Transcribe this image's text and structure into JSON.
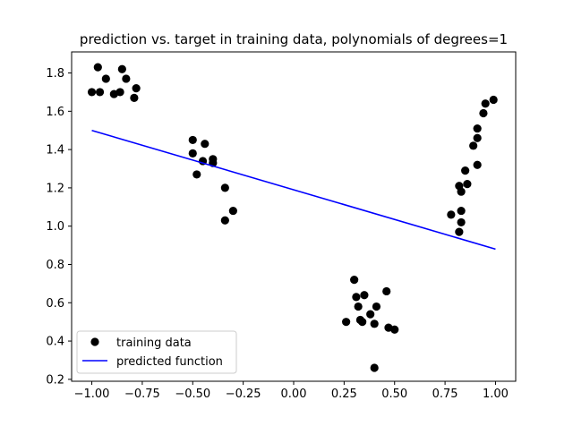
{
  "chart_data": {
    "type": "scatter",
    "title": "prediction vs. target in training data,  polynomials of degrees=1",
    "xlabel": "",
    "ylabel": "",
    "xlim": [
      -1.1,
      1.1
    ],
    "ylim": [
      0.19,
      1.91
    ],
    "xticks": [
      -1.0,
      -0.75,
      -0.5,
      -0.25,
      0.0,
      0.25,
      0.5,
      0.75,
      1.0
    ],
    "xtick_labels": [
      "−1.00",
      "−0.75",
      "−0.50",
      "−0.25",
      "0.00",
      "0.25",
      "0.50",
      "0.75",
      "1.00"
    ],
    "yticks": [
      0.2,
      0.4,
      0.6,
      0.8,
      1.0,
      1.2,
      1.4,
      1.6,
      1.8
    ],
    "ytick_labels": [
      "0.2",
      "0.4",
      "0.6",
      "0.8",
      "1.0",
      "1.2",
      "1.4",
      "1.6",
      "1.8"
    ],
    "grid": false,
    "legend": "lower-left",
    "series": [
      {
        "name": "training data",
        "kind": "scatter",
        "color": "#000000",
        "points": [
          [
            -0.97,
            1.83
          ],
          [
            -0.85,
            1.82
          ],
          [
            -0.93,
            1.77
          ],
          [
            -0.83,
            1.77
          ],
          [
            -1.0,
            1.7
          ],
          [
            -0.96,
            1.7
          ],
          [
            -0.86,
            1.7
          ],
          [
            -0.89,
            1.69
          ],
          [
            -0.78,
            1.72
          ],
          [
            -0.79,
            1.67
          ],
          [
            -0.5,
            1.45
          ],
          [
            -0.44,
            1.43
          ],
          [
            -0.5,
            1.38
          ],
          [
            -0.45,
            1.34
          ],
          [
            -0.4,
            1.35
          ],
          [
            -0.4,
            1.33
          ],
          [
            -0.48,
            1.27
          ],
          [
            -0.34,
            1.2
          ],
          [
            -0.3,
            1.08
          ],
          [
            -0.34,
            1.03
          ],
          [
            0.3,
            0.72
          ],
          [
            0.46,
            0.66
          ],
          [
            0.35,
            0.64
          ],
          [
            0.31,
            0.63
          ],
          [
            0.32,
            0.58
          ],
          [
            0.41,
            0.58
          ],
          [
            0.38,
            0.54
          ],
          [
            0.33,
            0.51
          ],
          [
            0.26,
            0.5
          ],
          [
            0.34,
            0.5
          ],
          [
            0.4,
            0.49
          ],
          [
            0.47,
            0.47
          ],
          [
            0.5,
            0.46
          ],
          [
            0.4,
            0.26
          ],
          [
            0.99,
            1.66
          ],
          [
            0.95,
            1.64
          ],
          [
            0.94,
            1.59
          ],
          [
            0.91,
            1.51
          ],
          [
            0.91,
            1.46
          ],
          [
            0.89,
            1.42
          ],
          [
            0.91,
            1.32
          ],
          [
            0.85,
            1.29
          ],
          [
            0.86,
            1.22
          ],
          [
            0.82,
            1.21
          ],
          [
            0.83,
            1.18
          ],
          [
            0.83,
            1.08
          ],
          [
            0.78,
            1.06
          ],
          [
            0.83,
            1.02
          ],
          [
            0.82,
            0.97
          ]
        ]
      },
      {
        "name": "predicted function",
        "kind": "line",
        "color": "#0000ff",
        "x": [
          -1.0,
          1.0
        ],
        "y": [
          1.5,
          0.88
        ]
      }
    ]
  }
}
